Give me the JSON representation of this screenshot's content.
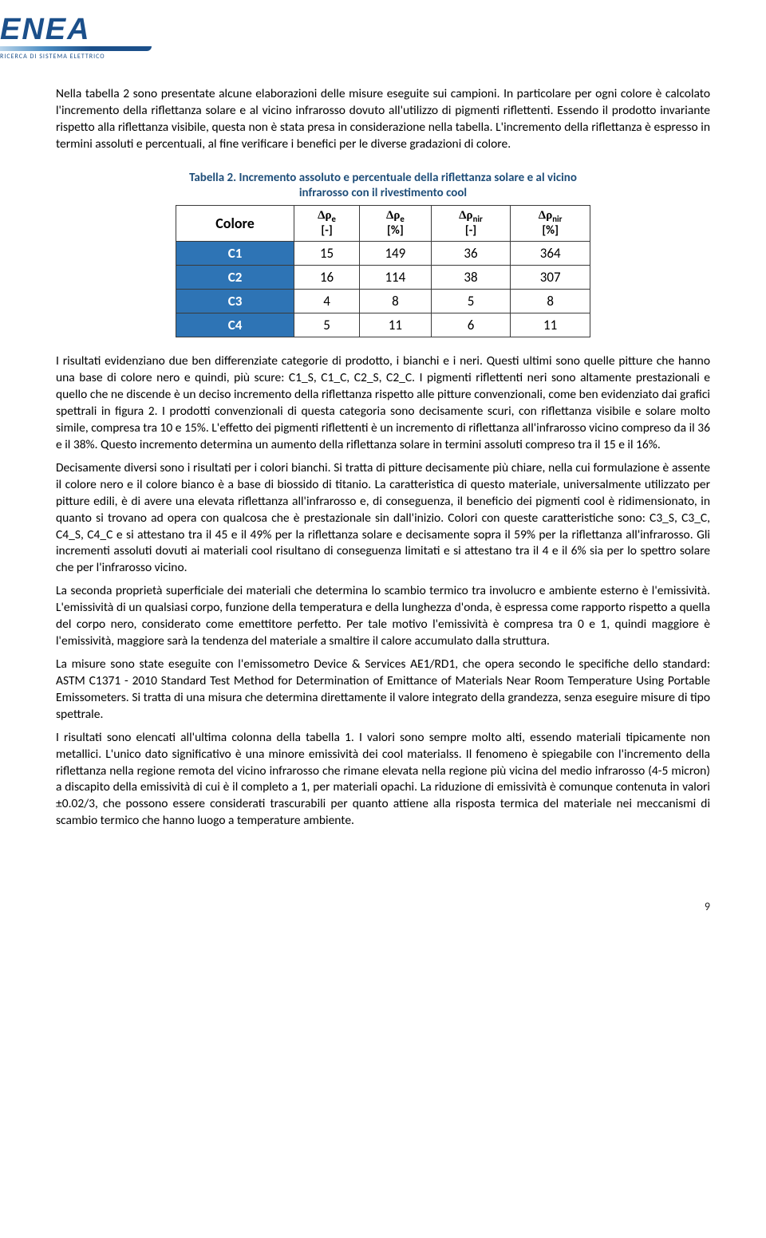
{
  "logo": {
    "brand": "ENEA",
    "subtitle": "RICERCA DI SISTEMA ELETTRICO",
    "brand_color": "#1b4f8a"
  },
  "paragraph_1": "Nella tabella 2 sono presentate alcune elaborazioni delle misure eseguite sui campioni. In particolare per ogni colore è calcolato l'incremento della riflettanza solare e al vicino infrarosso dovuto all'utilizzo di pigmenti riflettenti. Essendo il prodotto invariante rispetto alla riflettanza visibile, questa non è stata presa in considerazione nella tabella. L'incremento della riflettanza è espresso in termini assoluti e percentuali, al fine verificare i benefici per le diverse gradazioni di colore.",
  "table": {
    "caption": "Tabella 2. Incremento assoluto e percentuale della riflettanza solare e al vicino infrarosso con il rivestimento cool",
    "caption_color": "#1f4e79",
    "header_bg": "#ffffff",
    "rowlabel_bg": "#2e74b5",
    "rowlabel_fg": "#ffffff",
    "border_color": "#3a3a3a",
    "col_labels": {
      "colore": "Colore",
      "dre_abs": "Δρₑ",
      "dre_abs_unit": "[-]",
      "dre_pct": "Δρₑ",
      "dre_pct_unit": "[%]",
      "drnir_abs": "Δρₙᵢᵣ",
      "drnir_abs_unit": "[-]",
      "drnir_pct": "Δρₙᵢᵣ",
      "drnir_pct_unit": "[%]"
    },
    "rows": [
      {
        "label": "C1",
        "dre_abs": "15",
        "dre_pct": "149",
        "drnir_abs": "36",
        "drnir_pct": "364"
      },
      {
        "label": "C2",
        "dre_abs": "16",
        "dre_pct": "114",
        "drnir_abs": "38",
        "drnir_pct": "307"
      },
      {
        "label": "C3",
        "dre_abs": "4",
        "dre_pct": "8",
        "drnir_abs": "5",
        "drnir_pct": "8"
      },
      {
        "label": "C4",
        "dre_abs": "5",
        "dre_pct": "11",
        "drnir_abs": "6",
        "drnir_pct": "11"
      }
    ]
  },
  "paragraph_2": "I risultati evidenziano due ben differenziate categorie di prodotto, i bianchi e i neri. Questi ultimi sono quelle pitture che hanno una base di colore nero e quindi, più scure: C1_S, C1_C, C2_S, C2_C.  I pigmenti riflettenti neri sono altamente prestazionali e quello che ne discende è un deciso incremento della riflettanza rispetto alle pitture convenzionali, come ben evidenziato dai grafici spettrali in figura 2. I prodotti convenzionali di questa categoria sono decisamente scuri, con riflettanza visibile e solare molto simile, compresa tra 10 e 15%. L'effetto dei pigmenti riflettenti è un incremento di riflettanza all'infrarosso vicino compreso da il 36 e il 38%. Questo incremento determina un aumento della riflettanza solare in termini assoluti compreso tra il 15 e il 16%.",
  "paragraph_3": "Decisamente diversi sono i risultati per i colori bianchi. Si tratta di pitture decisamente più chiare, nella cui formulazione è assente il colore nero e il colore bianco è a base di biossido di titanio. La caratteristica di questo materiale, universalmente utilizzato per pitture edili, è di avere una elevata riflettanza all'infrarosso e, di conseguenza, il beneficio dei pigmenti cool è ridimensionato, in quanto si trovano ad opera con qualcosa che è prestazionale sin dall'inizio. Colori con queste caratteristiche sono: C3_S, C3_C, C4_S, C4_C e si attestano tra il 45 e il 49% per la riflettanza solare e decisamente sopra il 59% per la riflettanza all'infrarosso. Gli incrementi assoluti dovuti ai materiali cool risultano di conseguenza limitati e si attestano tra il 4 e il 6% sia per lo spettro solare che per l'infrarosso vicino.",
  "paragraph_4": "La seconda proprietà superficiale dei materiali che determina lo scambio termico tra involucro e ambiente esterno è l'emissività. L'emissività di un qualsiasi corpo, funzione della temperatura e della lunghezza d'onda, è espressa come rapporto rispetto a quella del corpo nero, considerato come emettitore perfetto. Per tale motivo l'emissività è compresa tra 0 e 1, quindi maggiore è l'emissività, maggiore sarà la tendenza del materiale a smaltire il calore accumulato dalla struttura.",
  "paragraph_5": "La misure sono state eseguite con l'emissometro Device & Services AE1/RD1, che opera secondo le specifiche dello standard: ASTM C1371 - 2010 Standard Test Method for Determination of Emittance of Materials Near Room Temperature Using Portable Emissometers. Si tratta di una misura che determina direttamente il valore integrato della grandezza, senza eseguire misure di tipo spettrale.",
  "paragraph_6": "I risultati sono elencati all'ultima colonna della tabella 1. I valori sono sempre molto alti, essendo materiali tipicamente non metallici. L'unico dato significativo è una minore emissività dei cool materialss. Il fenomeno è spiegabile con l'incremento della riflettanza nella regione remota del vicino infrarosso che rimane elevata nella regione più vicina del medio infrarosso (4-5 micron) a discapito della emissività di cui è il completo a 1, per materiali opachi. La riduzione di emissività è comunque contenuta in valori ±0.02/3, che possono essere considerati trascurabili per quanto attiene alla risposta termica del materiale nei meccanismi di scambio termico che hanno luogo a temperature ambiente.",
  "page_number": "9"
}
